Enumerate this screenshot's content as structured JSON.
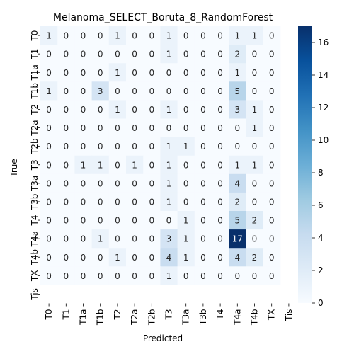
{
  "chart_data": {
    "type": "heatmap",
    "title": "Melanoma_SELECT_Boruta_8_RandomForest",
    "xlabel": "Predicted",
    "ylabel": "True",
    "x_categories": [
      "T0",
      "T1",
      "T1a",
      "T1b",
      "T2",
      "T2a",
      "T2b",
      "T3",
      "T3a",
      "T3b",
      "T4",
      "T4a",
      "T4b",
      "TX",
      "Tis"
    ],
    "y_categories": [
      "T0",
      "T1",
      "T1a",
      "T1b",
      "T2",
      "T2a",
      "T2b",
      "T3",
      "T3a",
      "T3b",
      "T4",
      "T4a",
      "T4b",
      "TX",
      "Tis"
    ],
    "values": [
      [
        1,
        0,
        0,
        0,
        1,
        0,
        0,
        1,
        0,
        0,
        0,
        1,
        1,
        0,
        null
      ],
      [
        0,
        0,
        0,
        0,
        0,
        0,
        0,
        1,
        0,
        0,
        0,
        2,
        0,
        0,
        null
      ],
      [
        0,
        0,
        0,
        0,
        1,
        0,
        0,
        0,
        0,
        0,
        0,
        1,
        0,
        0,
        null
      ],
      [
        1,
        0,
        0,
        3,
        0,
        0,
        0,
        0,
        0,
        0,
        0,
        5,
        0,
        0,
        null
      ],
      [
        0,
        0,
        0,
        0,
        1,
        0,
        0,
        1,
        0,
        0,
        0,
        3,
        1,
        0,
        null
      ],
      [
        0,
        0,
        0,
        0,
        0,
        0,
        0,
        0,
        0,
        0,
        0,
        0,
        1,
        0,
        null
      ],
      [
        0,
        0,
        0,
        0,
        0,
        0,
        0,
        1,
        1,
        0,
        0,
        0,
        0,
        0,
        null
      ],
      [
        0,
        0,
        1,
        1,
        0,
        1,
        0,
        1,
        0,
        0,
        0,
        1,
        1,
        0,
        null
      ],
      [
        0,
        0,
        0,
        0,
        0,
        0,
        0,
        1,
        0,
        0,
        0,
        4,
        0,
        0,
        null
      ],
      [
        0,
        0,
        0,
        0,
        0,
        0,
        0,
        1,
        0,
        0,
        0,
        2,
        0,
        0,
        null
      ],
      [
        0,
        0,
        0,
        0,
        0,
        0,
        0,
        0,
        1,
        0,
        0,
        5,
        2,
        0,
        null
      ],
      [
        0,
        0,
        0,
        1,
        0,
        0,
        0,
        3,
        1,
        0,
        0,
        17,
        0,
        0,
        null
      ],
      [
        0,
        0,
        0,
        0,
        1,
        0,
        0,
        4,
        1,
        0,
        0,
        4,
        2,
        0,
        null
      ],
      [
        0,
        0,
        0,
        0,
        0,
        0,
        0,
        1,
        0,
        0,
        0,
        0,
        0,
        0,
        null
      ],
      [
        null,
        null,
        null,
        null,
        null,
        null,
        null,
        null,
        null,
        null,
        null,
        null,
        null,
        null,
        null
      ]
    ],
    "colorbar": {
      "min": 0,
      "max": 17,
      "ticks": [
        0,
        2,
        4,
        6,
        8,
        10,
        12,
        14,
        16
      ]
    },
    "colormap": [
      "#f7fbff",
      "#deebf7",
      "#c6dbef",
      "#9ecae1",
      "#6baed6",
      "#4292c6",
      "#2171b5",
      "#08519c",
      "#08306b"
    ]
  }
}
